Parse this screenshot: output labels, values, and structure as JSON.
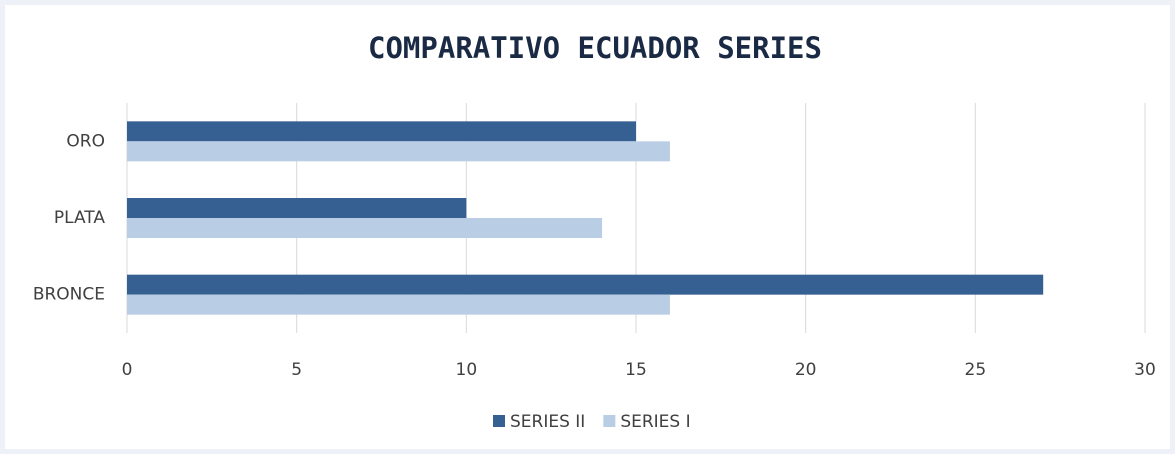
{
  "chart_data": {
    "type": "hbar",
    "title": "COMPARATIVO ECUADOR SERIES",
    "categories": [
      "ORO",
      "PLATA",
      "BRONCE"
    ],
    "series": [
      {
        "name": "SERIES II",
        "color": "#376092",
        "values": [
          15,
          10,
          27
        ]
      },
      {
        "name": "SERIES I",
        "color": "#b9cde5",
        "values": [
          16,
          14,
          16
        ]
      }
    ],
    "xlim": [
      0,
      30
    ],
    "xticks": [
      0,
      5,
      10,
      15,
      20,
      25,
      30
    ],
    "grid": true,
    "legend": "bottom"
  }
}
